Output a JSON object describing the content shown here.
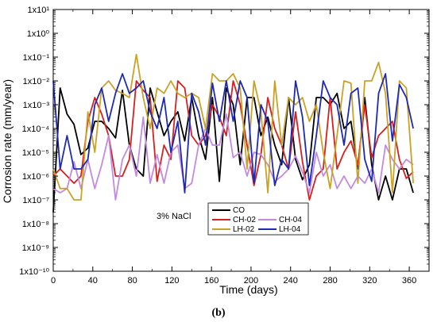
{
  "chart_data": {
    "type": "line",
    "title": "",
    "xlabel": "Time (days)",
    "ylabel": "Corrosion rate (mm/year)",
    "xlim": [
      0,
      380
    ],
    "xticks": [
      0,
      40,
      80,
      120,
      160,
      200,
      240,
      280,
      320,
      360
    ],
    "ylim_log10": [
      -10,
      1
    ],
    "yscale": "log",
    "ytick_labels": [
      "1x10¹",
      "1x10⁰",
      "1x10⁻¹",
      "1x10⁻²",
      "1x10⁻³",
      "1x10⁻⁴",
      "1x10⁻⁵",
      "1x10⁻⁶",
      "1x10⁻⁷",
      "1x10⁻⁸",
      "1x10⁻⁹",
      "1x10⁻¹⁰"
    ],
    "grid": false,
    "legend_position": "lower-center",
    "annotation": "3% NaCl",
    "caption": "(b)",
    "x": [
      0,
      7,
      14,
      21,
      28,
      35,
      42,
      49,
      56,
      63,
      70,
      77,
      84,
      91,
      98,
      105,
      112,
      119,
      126,
      133,
      140,
      147,
      154,
      161,
      168,
      175,
      182,
      189,
      196,
      203,
      210,
      217,
      224,
      231,
      238,
      245,
      252,
      259,
      266,
      273,
      280,
      287,
      294,
      301,
      308,
      315,
      322,
      329,
      336,
      343,
      350,
      357,
      364
    ],
    "series": [
      {
        "name": "CO",
        "color": "#000000",
        "values": [
          3e-08,
          0.005,
          0.0004,
          0.00015,
          8e-06,
          1.5e-05,
          0.0002,
          0.0002,
          0.0001,
          4e-05,
          0.004,
          2e-05,
          2e-06,
          1e-06,
          0.005,
          0.0005,
          5e-05,
          0.0002,
          0.0005,
          3e-05,
          0.002,
          5e-05,
          5e-06,
          0.002,
          6e-07,
          0.005,
          0.001,
          3e-06,
          0.002,
          0.002,
          5e-05,
          0.0003,
          2e-05,
          3e-06,
          0.002,
          5e-06,
          7e-07,
          3e-06,
          0.002,
          0.002,
          0.001,
          0.003,
          0.0001,
          0.0002,
          2e-06,
          0.002,
          3e-06,
          1e-07,
          1e-06,
          1e-07,
          2e-06,
          2e-06,
          2e-07
        ]
      },
      {
        "name": "CH-02",
        "color": "#d62020",
        "values": [
          1e-06,
          2e-06,
          1e-06,
          5e-07,
          1e-06,
          0.0002,
          0.002,
          0.0004,
          5e-05,
          1e-06,
          1e-06,
          5e-06,
          0.01,
          0.004,
          0.002,
          6e-07,
          2e-05,
          5e-06,
          0.01,
          0.005,
          5e-05,
          2e-05,
          5e-05,
          0.001,
          0.0003,
          5e-05,
          0.01,
          0.001,
          2e-05,
          4e-07,
          8e-06,
          0.002,
          0.0001,
          2e-05,
          2e-06,
          0.0005,
          4e-06,
          1e-07,
          1e-06,
          2e-06,
          0.002,
          2e-06,
          1e-05,
          3e-05,
          3e-06,
          0.001,
          6e-06,
          5e-05,
          0.0001,
          0.0002,
          5e-06,
          8e-07,
          1.5e-06
        ]
      },
      {
        "name": "CH-04",
        "color": "#c28ae0",
        "values": [
          3e-07,
          2e-07,
          3e-07,
          4e-06,
          3e-07,
          5e-06,
          3e-07,
          3e-06,
          5e-05,
          1e-07,
          5e-06,
          2e-05,
          1e-06,
          0.0003,
          5e-07,
          8e-06,
          5e-07,
          1e-05,
          2e-05,
          3e-07,
          5e-07,
          2e-05,
          0.0001,
          2e-05,
          2e-05,
          0.0004,
          6e-06,
          1e-05,
          1e-06,
          1e-05,
          8e-06,
          3e-06,
          6e-07,
          1e-06,
          2e-06,
          7e-06,
          1.5e-06,
          2e-07,
          1e-05,
          1e-06,
          3e-06,
          3e-07,
          1e-06,
          3e-07,
          1e-06,
          5e-07,
          2e-06,
          2e-07,
          2e-05,
          5e-06,
          2e-06,
          5e-06,
          3e-06
        ]
      },
      {
        "name": "LH-02",
        "color": "#c9a227",
        "values": [
          2e-06,
          3e-07,
          3e-07,
          1e-07,
          1e-07,
          0.0005,
          1e-05,
          0.005,
          0.01,
          0.004,
          0.003,
          0.002,
          0.13,
          0.002,
          0.0001,
          0.005,
          0.003,
          0.01,
          0.003,
          0.002,
          0.003,
          0.002,
          0.0001,
          0.02,
          0.01,
          0.01,
          0.02,
          0.005,
          2e-06,
          0.01,
          0.0005,
          2e-07,
          0.01,
          2e-05,
          0.002,
          0.001,
          0.002,
          0.0002,
          0.001,
          1e-05,
          3e-07,
          5e-05,
          0.01,
          0.008,
          5e-07,
          0.01,
          0.01,
          0.06,
          0.003,
          2e-07,
          0.01,
          0.005,
          5e-07
        ]
      },
      {
        "name": "LH-04",
        "color": "#1f2ab4",
        "values": [
          0.01,
          2e-06,
          5e-05,
          2e-06,
          2e-06,
          5e-06,
          0.001,
          0.005,
          0.0002,
          0.003,
          0.02,
          0.003,
          0.005,
          0.01,
          0.0005,
          0.0001,
          0.002,
          1e-05,
          0.0002,
          2e-07,
          0.003,
          0.0005,
          2e-05,
          0.008,
          0.0002,
          0.01,
          0.0002,
          0.01,
          0.002,
          5e-07,
          0.001,
          0.0002,
          4e-07,
          5e-06,
          2e-06,
          0.01,
          0.0003,
          4e-07,
          5e-05,
          0.01,
          0.002,
          0.001,
          2e-05,
          0.003,
          0.005,
          5e-06,
          6e-07,
          0.003,
          0.02,
          3e-05,
          0.007,
          0.002,
          0.0001
        ]
      }
    ]
  }
}
